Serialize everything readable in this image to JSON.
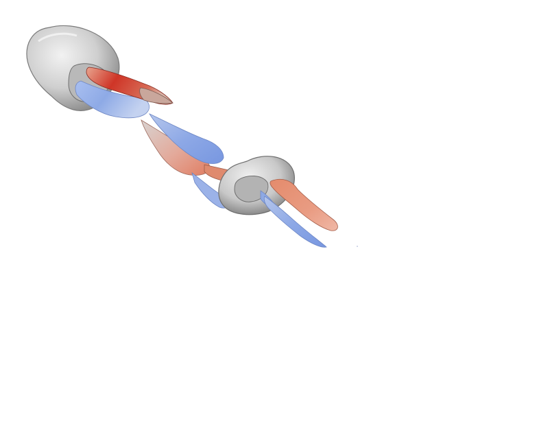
{
  "scene": {
    "background_color": "#ffffff",
    "description_colors": {
      "gray_surface": "#d2d2d2",
      "red_positive": "#d03a2e",
      "salmon": "#e6957a",
      "blue_negative": "#8fa9e6"
    },
    "objects": [
      {
        "kind": "vortex-ring",
        "name": "primary-vortex-ring",
        "color": "gray"
      },
      {
        "kind": "vortex-tube",
        "name": "red-inner-tube",
        "color": "red"
      },
      {
        "kind": "vortex-tube",
        "name": "blue-lower-tube",
        "color": "blue"
      },
      {
        "kind": "vortex-tail",
        "name": "salmon-mid-tail",
        "color": "salmon"
      },
      {
        "kind": "vortex-tail",
        "name": "blue-mid-tail",
        "color": "blue"
      },
      {
        "kind": "vortex-ring",
        "name": "secondary-vortex-ring",
        "color": "gray"
      },
      {
        "kind": "vortex-tail",
        "name": "salmon-trailing-tail",
        "color": "salmon"
      },
      {
        "kind": "vortex-tail",
        "name": "blue-trailing-tail",
        "color": "blue"
      }
    ]
  }
}
